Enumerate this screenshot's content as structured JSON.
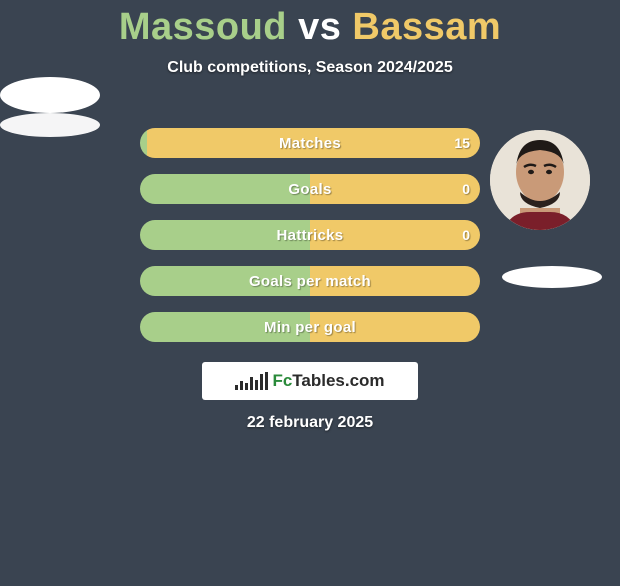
{
  "title": {
    "player1": "Massoud",
    "vs": "vs",
    "player2": "Bassam"
  },
  "subtitle": "Club competitions, Season 2024/2025",
  "colors": {
    "player1": "#a8cf8a",
    "player2": "#f0c968",
    "background": "#3a4451",
    "white": "#ffffff"
  },
  "rows": [
    {
      "label": "Matches",
      "left": "",
      "right": "15",
      "left_pct": 2,
      "right_pct": 98
    },
    {
      "label": "Goals",
      "left": "",
      "right": "0",
      "left_pct": 50,
      "right_pct": 50
    },
    {
      "label": "Hattricks",
      "left": "",
      "right": "0",
      "left_pct": 50,
      "right_pct": 50
    },
    {
      "label": "Goals per match",
      "left": "",
      "right": "",
      "left_pct": 50,
      "right_pct": 50
    },
    {
      "label": "Min per goal",
      "left": "",
      "right": "",
      "left_pct": 50,
      "right_pct": 50
    }
  ],
  "logo": {
    "prefix": "Fc",
    "suffix": "Tables.com"
  },
  "date": "22 february 2025"
}
